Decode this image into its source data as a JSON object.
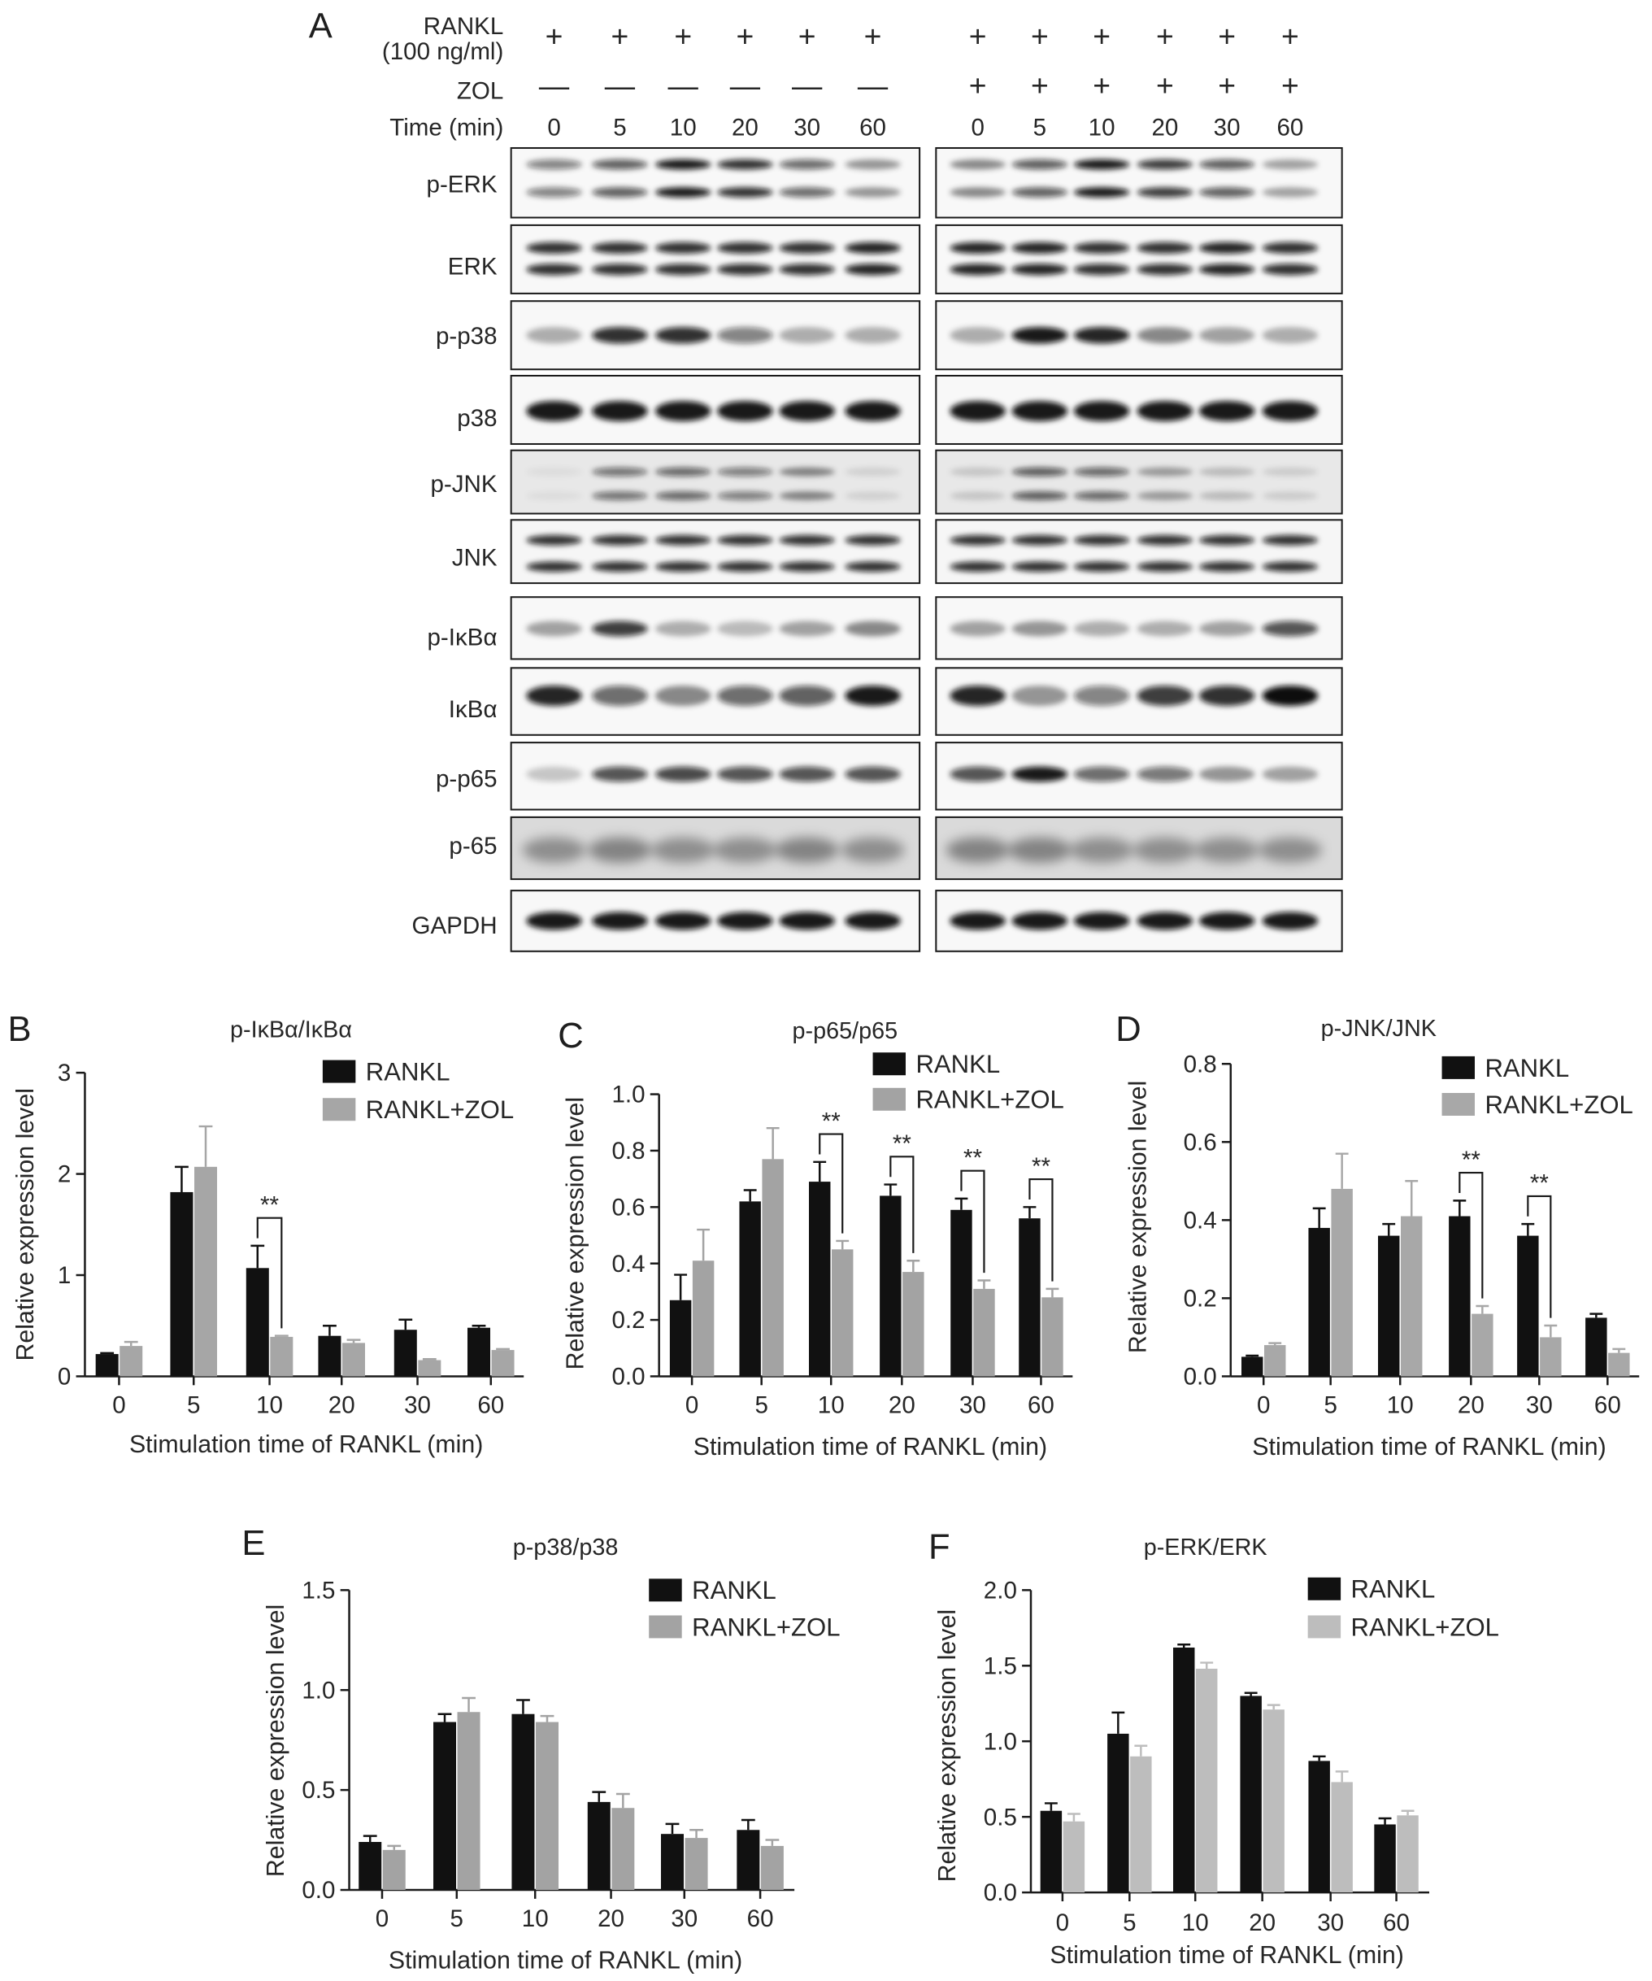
{
  "blot": {
    "panel": "A",
    "header": {
      "rankl_label": "RANKL",
      "rankl_conc": "(100 ng/ml)",
      "zol_label": "ZOL",
      "time_label": "Time (min)",
      "groups": [
        {
          "rankl": [
            "+",
            "+",
            "+",
            "+",
            "+",
            "+"
          ],
          "zol": [
            "—",
            "—",
            "—",
            "—",
            "—",
            "—"
          ],
          "times": [
            "0",
            "5",
            "10",
            "20",
            "30",
            "60"
          ]
        },
        {
          "rankl": [
            "+",
            "+",
            "+",
            "+",
            "+",
            "+"
          ],
          "zol": [
            "+",
            "+",
            "+",
            "+",
            "+",
            "+"
          ],
          "times": [
            "0",
            "5",
            "10",
            "20",
            "30",
            "60"
          ]
        }
      ]
    },
    "rows": [
      {
        "label": "p-ERK",
        "bands": 2,
        "background": "#f8f8f8",
        "intensity": [
          [
            0.5,
            0.65,
            0.95,
            0.85,
            0.6,
            0.4
          ],
          [
            0.45,
            0.65,
            0.95,
            0.8,
            0.65,
            0.35
          ]
        ]
      },
      {
        "label": "ERK",
        "bands": 2,
        "background": "#f8f8f8",
        "intensity": [
          [
            0.85,
            0.85,
            0.85,
            0.85,
            0.85,
            0.9
          ],
          [
            0.9,
            0.9,
            0.85,
            0.85,
            0.9,
            0.85
          ]
        ]
      },
      {
        "label": "p-p38",
        "bands": 1,
        "background": "#f8f8f8",
        "intensity": [
          [
            0.3,
            0.85,
            0.85,
            0.5,
            0.3,
            0.3
          ],
          [
            0.3,
            0.95,
            0.9,
            0.45,
            0.35,
            0.3
          ]
        ]
      },
      {
        "label": "p38",
        "bands": 1,
        "background": "#f8f8f8",
        "intensity": [
          [
            0.95,
            0.95,
            0.95,
            0.95,
            0.95,
            0.95
          ],
          [
            0.95,
            0.95,
            0.95,
            0.95,
            0.95,
            0.95
          ]
        ]
      },
      {
        "label": "p-JNK",
        "bands": 2,
        "background": "#e8e8e8",
        "intensity": [
          [
            0.05,
            0.55,
            0.6,
            0.5,
            0.45,
            0.1
          ],
          [
            0.15,
            0.65,
            0.6,
            0.35,
            0.2,
            0.12
          ]
        ]
      },
      {
        "label": "JNK",
        "bands": 2,
        "background": "#f6f6f6",
        "intensity": [
          [
            0.85,
            0.85,
            0.85,
            0.85,
            0.85,
            0.85
          ],
          [
            0.85,
            0.85,
            0.85,
            0.85,
            0.85,
            0.85
          ]
        ]
      },
      {
        "label": "p-IκBα",
        "bands": 1,
        "background": "#f8f8f8",
        "intensity": [
          [
            0.35,
            0.8,
            0.3,
            0.25,
            0.35,
            0.45
          ],
          [
            0.35,
            0.4,
            0.3,
            0.3,
            0.35,
            0.7
          ]
        ]
      },
      {
        "label": "IκBα",
        "bands": 1,
        "background": "#f8f8f8",
        "intensity": [
          [
            0.9,
            0.6,
            0.45,
            0.6,
            0.65,
            0.95
          ],
          [
            0.9,
            0.4,
            0.5,
            0.8,
            0.85,
            1.0
          ]
        ]
      },
      {
        "label": "p-p65",
        "bands": 1,
        "background": "#f8f8f8",
        "intensity": [
          [
            0.2,
            0.7,
            0.75,
            0.7,
            0.7,
            0.7
          ],
          [
            0.7,
            0.95,
            0.6,
            0.55,
            0.4,
            0.35
          ]
        ]
      },
      {
        "label": "p-65",
        "bands": 1,
        "background": "#dadada",
        "intensity": [
          [
            0.35,
            0.4,
            0.35,
            0.35,
            0.4,
            0.35
          ],
          [
            0.4,
            0.4,
            0.35,
            0.35,
            0.35,
            0.35
          ]
        ]
      },
      {
        "label": "GAPDH",
        "bands": 1,
        "background": "#f8f8f8",
        "intensity": [
          [
            0.95,
            0.95,
            0.95,
            0.95,
            0.95,
            0.95
          ],
          [
            0.95,
            0.95,
            0.95,
            0.95,
            0.95,
            0.95
          ]
        ]
      }
    ]
  },
  "chart_data": [
    {
      "panel": "B",
      "type": "bar",
      "title": "p-IκBα/IκBα",
      "xlabel": "Stimulation time of RANKL (min)",
      "ylabel": "Relative expression level",
      "categories": [
        "0",
        "5",
        "10",
        "20",
        "30",
        "60"
      ],
      "ylim": [
        0,
        3
      ],
      "yticks": [
        "0",
        "1",
        "2",
        "3"
      ],
      "legend": "top-right",
      "series": [
        {
          "name": "RANKL",
          "color": "#111111",
          "values": [
            0.22,
            1.82,
            1.07,
            0.4,
            0.46,
            0.48
          ],
          "errors": [
            0.01,
            0.25,
            0.22,
            0.1,
            0.1,
            0.02
          ]
        },
        {
          "name": "RANKL+ZOL",
          "color": "#a6a6a6",
          "values": [
            0.3,
            2.07,
            0.39,
            0.33,
            0.16,
            0.26
          ],
          "errors": [
            0.04,
            0.4,
            0.01,
            0.03,
            0.01,
            0.01
          ]
        }
      ],
      "significance": [
        {
          "category": 10,
          "label": "**"
        }
      ]
    },
    {
      "panel": "C",
      "type": "bar",
      "title": "p-p65/p65",
      "xlabel": "Stimulation time of RANKL (min)",
      "ylabel": "Relative expression level",
      "categories": [
        "0",
        "5",
        "10",
        "20",
        "30",
        "60"
      ],
      "ylim": [
        0,
        1.0
      ],
      "yticks": [
        "0.0",
        "0.2",
        "0.4",
        "0.6",
        "0.8",
        "1.0"
      ],
      "legend": "top-right",
      "series": [
        {
          "name": "RANKL",
          "color": "#111111",
          "values": [
            0.27,
            0.62,
            0.69,
            0.64,
            0.59,
            0.56
          ],
          "errors": [
            0.09,
            0.04,
            0.07,
            0.04,
            0.04,
            0.04
          ]
        },
        {
          "name": "RANKL+ZOL",
          "color": "#a3a3a3",
          "values": [
            0.41,
            0.77,
            0.45,
            0.37,
            0.31,
            0.28
          ],
          "errors": [
            0.11,
            0.11,
            0.03,
            0.04,
            0.03,
            0.03
          ]
        }
      ],
      "significance": [
        {
          "category": 10,
          "label": "**"
        },
        {
          "category": 20,
          "label": "**"
        },
        {
          "category": 30,
          "label": "**"
        },
        {
          "category": 60,
          "label": "**"
        }
      ]
    },
    {
      "panel": "D",
      "type": "bar",
      "title": "p-JNK/JNK",
      "xlabel": "Stimulation time of RANKL (min)",
      "ylabel": "Relative expression level",
      "categories": [
        "0",
        "5",
        "10",
        "20",
        "30",
        "60"
      ],
      "ylim": [
        0,
        0.8
      ],
      "yticks": [
        "0.0",
        "0.2",
        "0.4",
        "0.6",
        "0.8"
      ],
      "legend": "top-right",
      "series": [
        {
          "name": "RANKL",
          "color": "#111111",
          "values": [
            0.05,
            0.38,
            0.36,
            0.41,
            0.36,
            0.15
          ],
          "errors": [
            0.003,
            0.05,
            0.03,
            0.04,
            0.03,
            0.01
          ]
        },
        {
          "name": "RANKL+ZOL",
          "color": "#a8a8a8",
          "values": [
            0.08,
            0.48,
            0.41,
            0.16,
            0.1,
            0.06
          ],
          "errors": [
            0.005,
            0.09,
            0.09,
            0.02,
            0.03,
            0.01
          ]
        }
      ],
      "significance": [
        {
          "category": 20,
          "label": "**"
        },
        {
          "category": 30,
          "label": "**"
        }
      ]
    },
    {
      "panel": "E",
      "type": "bar",
      "title": "p-p38/p38",
      "xlabel": "Stimulation time of RANKL (min)",
      "ylabel": "Relative expression level",
      "categories": [
        "0",
        "5",
        "10",
        "20",
        "30",
        "60"
      ],
      "ylim": [
        0,
        1.5
      ],
      "yticks": [
        "0.0",
        "0.5",
        "1.0",
        "1.5"
      ],
      "legend": "top-right",
      "series": [
        {
          "name": "RANKL",
          "color": "#111111",
          "values": [
            0.24,
            0.84,
            0.88,
            0.44,
            0.28,
            0.3
          ],
          "errors": [
            0.03,
            0.04,
            0.07,
            0.05,
            0.05,
            0.05
          ]
        },
        {
          "name": "RANKL+ZOL",
          "color": "#a3a3a3",
          "values": [
            0.2,
            0.89,
            0.84,
            0.41,
            0.26,
            0.22
          ],
          "errors": [
            0.02,
            0.07,
            0.03,
            0.07,
            0.04,
            0.03
          ]
        }
      ],
      "significance": []
    },
    {
      "panel": "F",
      "type": "bar",
      "title": "p-ERK/ERK",
      "xlabel": "Stimulation time of RANKL (min)",
      "ylabel": "Relative expression level",
      "categories": [
        "0",
        "5",
        "10",
        "20",
        "30",
        "60"
      ],
      "ylim": [
        0,
        2.0
      ],
      "yticks": [
        "0.0",
        "0.5",
        "1.0",
        "1.5",
        "2.0"
      ],
      "legend": "top-right",
      "series": [
        {
          "name": "RANKL",
          "color": "#111111",
          "values": [
            0.54,
            1.05,
            1.62,
            1.3,
            0.87,
            0.45
          ],
          "errors": [
            0.05,
            0.14,
            0.02,
            0.02,
            0.03,
            0.04
          ]
        },
        {
          "name": "RANKL+ZOL",
          "color": "#bdbdbd",
          "values": [
            0.47,
            0.9,
            1.48,
            1.21,
            0.73,
            0.51
          ],
          "errors": [
            0.05,
            0.07,
            0.04,
            0.03,
            0.07,
            0.03
          ]
        }
      ],
      "significance": []
    }
  ]
}
